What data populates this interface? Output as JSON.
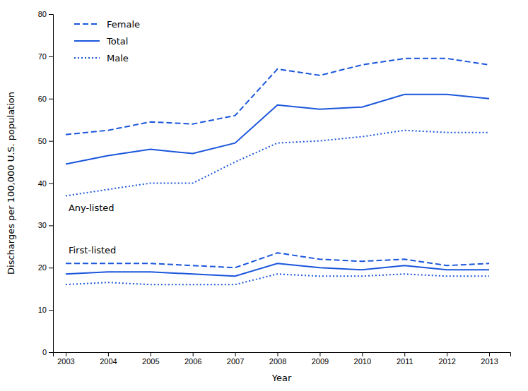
{
  "chart_data": {
    "type": "line",
    "xlabel": "Year",
    "ylabel": "Discharges per 100,000 U.S. population",
    "x": [
      2003,
      2004,
      2005,
      2006,
      2007,
      2008,
      2009,
      2010,
      2011,
      2012,
      2013
    ],
    "series": [
      {
        "name": "Female",
        "color": "#1a56db",
        "line_style": "dashed",
        "values": [
          51.5,
          52.5,
          54.5,
          54.0,
          56.0,
          67.0,
          65.5,
          68.0,
          69.5,
          69.5,
          68.0
        ]
      },
      {
        "name": "Total",
        "color": "#1a56db",
        "line_style": "solid",
        "values": [
          44.5,
          46.5,
          48.0,
          47.0,
          49.5,
          58.5,
          57.5,
          58.0,
          61.0,
          61.0,
          60.0
        ]
      },
      {
        "name": "Male",
        "color": "#1a56db",
        "line_style": "dotted",
        "values": [
          37.0,
          38.5,
          40.0,
          40.0,
          45.0,
          49.5,
          50.0,
          51.0,
          52.5,
          52.0,
          52.0
        ]
      },
      {
        "color": "#1a56db",
        "line_style": "dashed",
        "values": [
          21.0,
          21.0,
          21.0,
          20.5,
          20.0,
          23.5,
          22.0,
          21.5,
          22.0,
          20.5,
          21.0
        ]
      },
      {
        "color": "#1a56db",
        "line_style": "solid",
        "values": [
          18.5,
          19.0,
          19.0,
          18.5,
          18.0,
          21.0,
          20.0,
          19.5,
          20.5,
          19.5,
          19.5
        ]
      },
      {
        "color": "#1a56db",
        "line_style": "dotted",
        "values": [
          16.0,
          16.5,
          16.0,
          16.0,
          16.0,
          18.5,
          18.0,
          18.0,
          18.5,
          18.0,
          18.0
        ]
      }
    ],
    "annotations": [
      "Any-listed",
      "First-listed"
    ],
    "xlim": [
      2002.7,
      2013.5
    ],
    "xticks": [
      2003,
      2004,
      2005,
      2006,
      2007,
      2008,
      2009,
      2010,
      2011,
      2012,
      2013
    ],
    "ylim": [
      0,
      80
    ],
    "yticks": [
      0,
      10,
      20,
      30,
      40,
      50,
      60,
      70,
      80
    ],
    "grid": false,
    "legend": "upper left"
  }
}
